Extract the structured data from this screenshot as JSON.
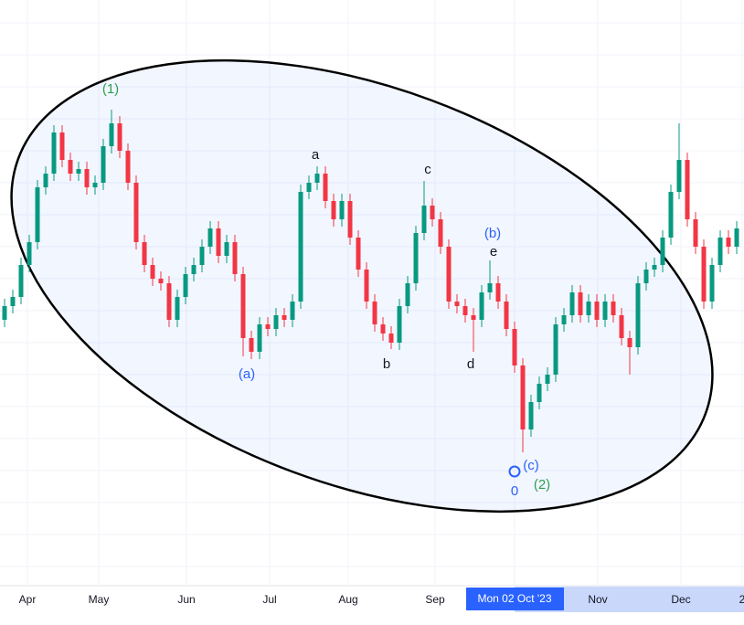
{
  "chart_data": {
    "type": "candlestick",
    "up_color": "#089981",
    "down_color": "#f23645",
    "grid": true,
    "open": [
      350,
      365,
      375,
      410,
      435,
      495,
      510,
      555,
      525,
      510,
      515,
      495,
      500,
      540,
      565,
      535,
      500,
      435,
      410,
      395,
      390,
      350,
      375,
      400,
      410,
      430,
      450,
      420,
      435,
      400,
      330,
      315,
      345,
      340,
      355,
      350,
      370,
      490,
      500,
      510,
      480,
      460,
      480,
      440,
      405,
      370,
      345,
      335,
      325,
      365,
      390,
      445,
      475,
      460,
      430,
      370,
      365,
      355,
      350,
      380,
      390,
      370,
      340,
      300,
      230,
      260,
      280,
      290,
      345,
      355,
      380,
      355,
      370,
      350,
      370,
      355,
      330,
      320,
      390,
      405,
      410,
      440,
      490,
      525,
      460,
      430,
      370,
      410,
      440,
      430
    ],
    "high": [
      373,
      383,
      418,
      443,
      503,
      518,
      563,
      563,
      533,
      523,
      523,
      508,
      548,
      580,
      573,
      543,
      508,
      443,
      418,
      403,
      398,
      383,
      408,
      418,
      438,
      458,
      458,
      443,
      443,
      408,
      338,
      353,
      353,
      363,
      363,
      378,
      498,
      508,
      518,
      518,
      488,
      488,
      488,
      448,
      413,
      378,
      353,
      343,
      373,
      398,
      453,
      502,
      483,
      468,
      438,
      378,
      373,
      363,
      388,
      415,
      398,
      378,
      348,
      308,
      268,
      288,
      298,
      353,
      363,
      388,
      388,
      378,
      378,
      378,
      378,
      363,
      338,
      398,
      413,
      418,
      448,
      498,
      565,
      533,
      468,
      438,
      418,
      448,
      448,
      458
    ],
    "low": [
      342,
      357,
      367,
      402,
      427,
      487,
      502,
      517,
      502,
      502,
      487,
      487,
      492,
      532,
      527,
      492,
      427,
      402,
      387,
      382,
      342,
      342,
      367,
      392,
      402,
      422,
      412,
      412,
      392,
      310,
      307,
      307,
      332,
      332,
      342,
      342,
      362,
      482,
      492,
      472,
      452,
      452,
      432,
      397,
      362,
      337,
      327,
      318,
      317,
      357,
      382,
      437,
      452,
      422,
      362,
      357,
      347,
      315,
      342,
      372,
      362,
      332,
      292,
      205,
      222,
      252,
      272,
      282,
      337,
      347,
      347,
      347,
      342,
      342,
      347,
      322,
      290,
      312,
      382,
      397,
      402,
      432,
      482,
      452,
      422,
      362,
      362,
      402,
      422,
      422
    ],
    "close": [
      365,
      375,
      410,
      435,
      495,
      510,
      555,
      525,
      510,
      515,
      495,
      500,
      540,
      565,
      535,
      500,
      435,
      410,
      395,
      390,
      350,
      375,
      400,
      410,
      430,
      450,
      420,
      435,
      400,
      330,
      315,
      345,
      340,
      355,
      350,
      370,
      490,
      500,
      510,
      480,
      460,
      480,
      440,
      405,
      370,
      345,
      335,
      325,
      365,
      390,
      445,
      475,
      460,
      430,
      370,
      365,
      355,
      350,
      380,
      390,
      370,
      340,
      300,
      230,
      260,
      280,
      290,
      345,
      355,
      380,
      355,
      370,
      350,
      370,
      355,
      330,
      320,
      390,
      405,
      410,
      440,
      490,
      525,
      460,
      430,
      370,
      410,
      440,
      430,
      450
    ],
    "x_tick_labels": [
      "Apr",
      "May",
      "Jun",
      "Jul",
      "Aug",
      "Sep",
      "Nov",
      "Dec",
      "2"
    ],
    "crosshair_label": "Mon 02 Oct '23",
    "annotations": [
      {
        "text": "(1)",
        "color": "#2e9e4f"
      },
      {
        "text": "a",
        "color": "#131722"
      },
      {
        "text": "c",
        "color": "#131722"
      },
      {
        "text": "(b)",
        "color": "#2962ff"
      },
      {
        "text": "e",
        "color": "#131722"
      },
      {
        "text": "(a)",
        "color": "#2962ff"
      },
      {
        "text": "b",
        "color": "#131722"
      },
      {
        "text": "d",
        "color": "#131722"
      },
      {
        "text": "(c)",
        "color": "#2962ff"
      },
      {
        "text": "0",
        "color": "#2962ff"
      },
      {
        "text": "(2)",
        "color": "#2e9e4f"
      }
    ]
  }
}
